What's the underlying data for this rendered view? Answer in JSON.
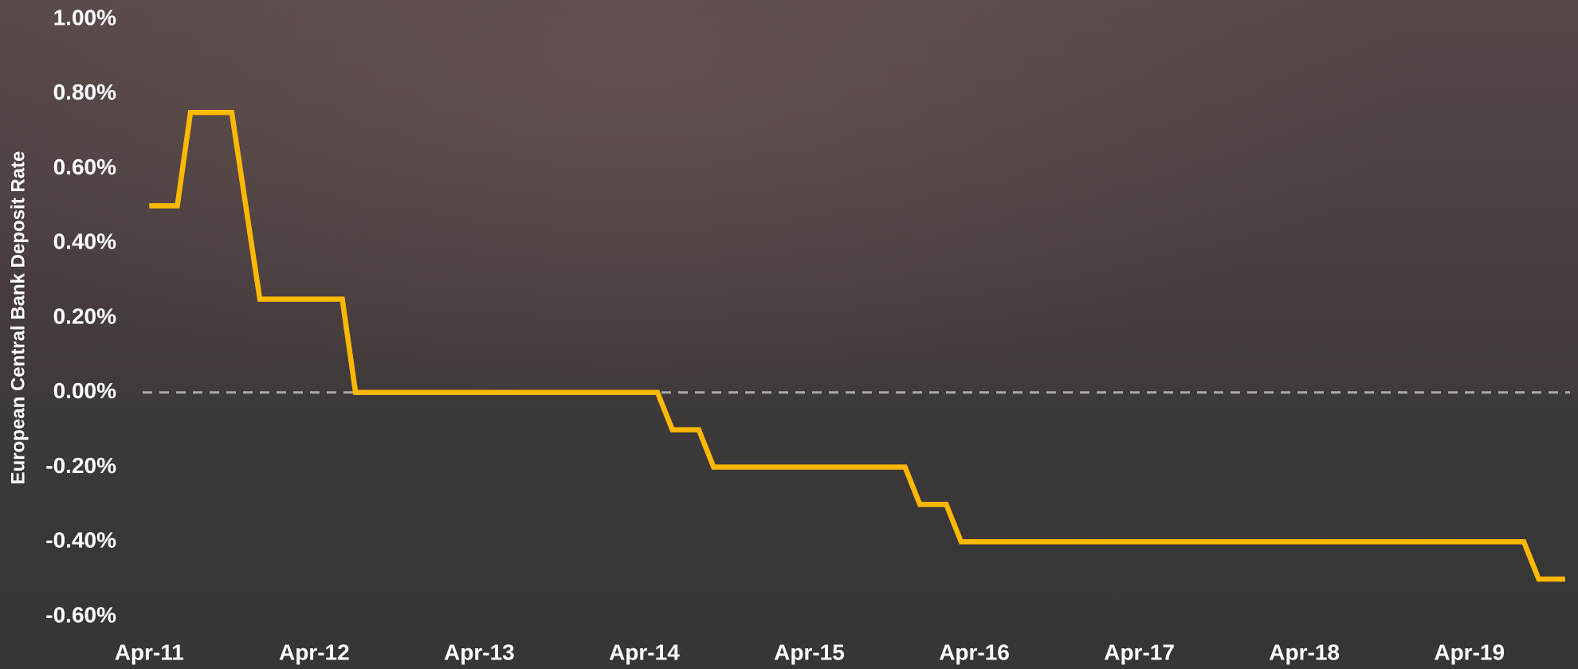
{
  "chart_data": {
    "type": "line",
    "y_label": "European Central Bank Deposit Rate",
    "x": [
      2011.25,
      2011.42,
      2011.5,
      2011.75,
      2011.92,
      2012.42,
      2012.5,
      2014.33,
      2014.42,
      2014.58,
      2014.67,
      2015.83,
      2015.92,
      2016.08,
      2016.17,
      2019.58,
      2019.67,
      2019.83
    ],
    "series": [
      {
        "name": "European Central Bank Deposit Rate",
        "color": "#ffb800",
        "values": [
          0.5,
          0.5,
          0.75,
          0.75,
          0.25,
          0.25,
          0,
          0,
          -0.1,
          -0.1,
          -0.2,
          -0.2,
          -0.3,
          -0.3,
          -0.4,
          -0.4,
          -0.5,
          -0.5
        ]
      }
    ],
    "xlim": [
      2011.21,
      2019.86
    ],
    "xticks": [
      {
        "value": 2011.25,
        "label": "Apr-11"
      },
      {
        "value": 2012.25,
        "label": "Apr-12"
      },
      {
        "value": 2013.25,
        "label": "Apr-13"
      },
      {
        "value": 2014.25,
        "label": "Apr-14"
      },
      {
        "value": 2015.25,
        "label": "Apr-15"
      },
      {
        "value": 2016.25,
        "label": "Apr-16"
      },
      {
        "value": 2017.25,
        "label": "Apr-17"
      },
      {
        "value": 2018.25,
        "label": "Apr-18"
      },
      {
        "value": 2019.25,
        "label": "Apr-19"
      }
    ],
    "ylim": [
      -0.6,
      1.0
    ],
    "yticks": [
      {
        "value": -0.6,
        "label": "-0.60%"
      },
      {
        "value": -0.4,
        "label": "-0.40%"
      },
      {
        "value": -0.2,
        "label": "-0.20%"
      },
      {
        "value": 0,
        "label": "0.00%"
      },
      {
        "value": 0.2,
        "label": "0.20%"
      },
      {
        "value": 0.4,
        "label": "0.40%"
      },
      {
        "value": 0.6,
        "label": "0.60%"
      },
      {
        "value": 0.8,
        "label": "0.80%"
      },
      {
        "value": 1.0,
        "label": "1.00%"
      }
    ],
    "zero_line": true,
    "grid": false
  }
}
